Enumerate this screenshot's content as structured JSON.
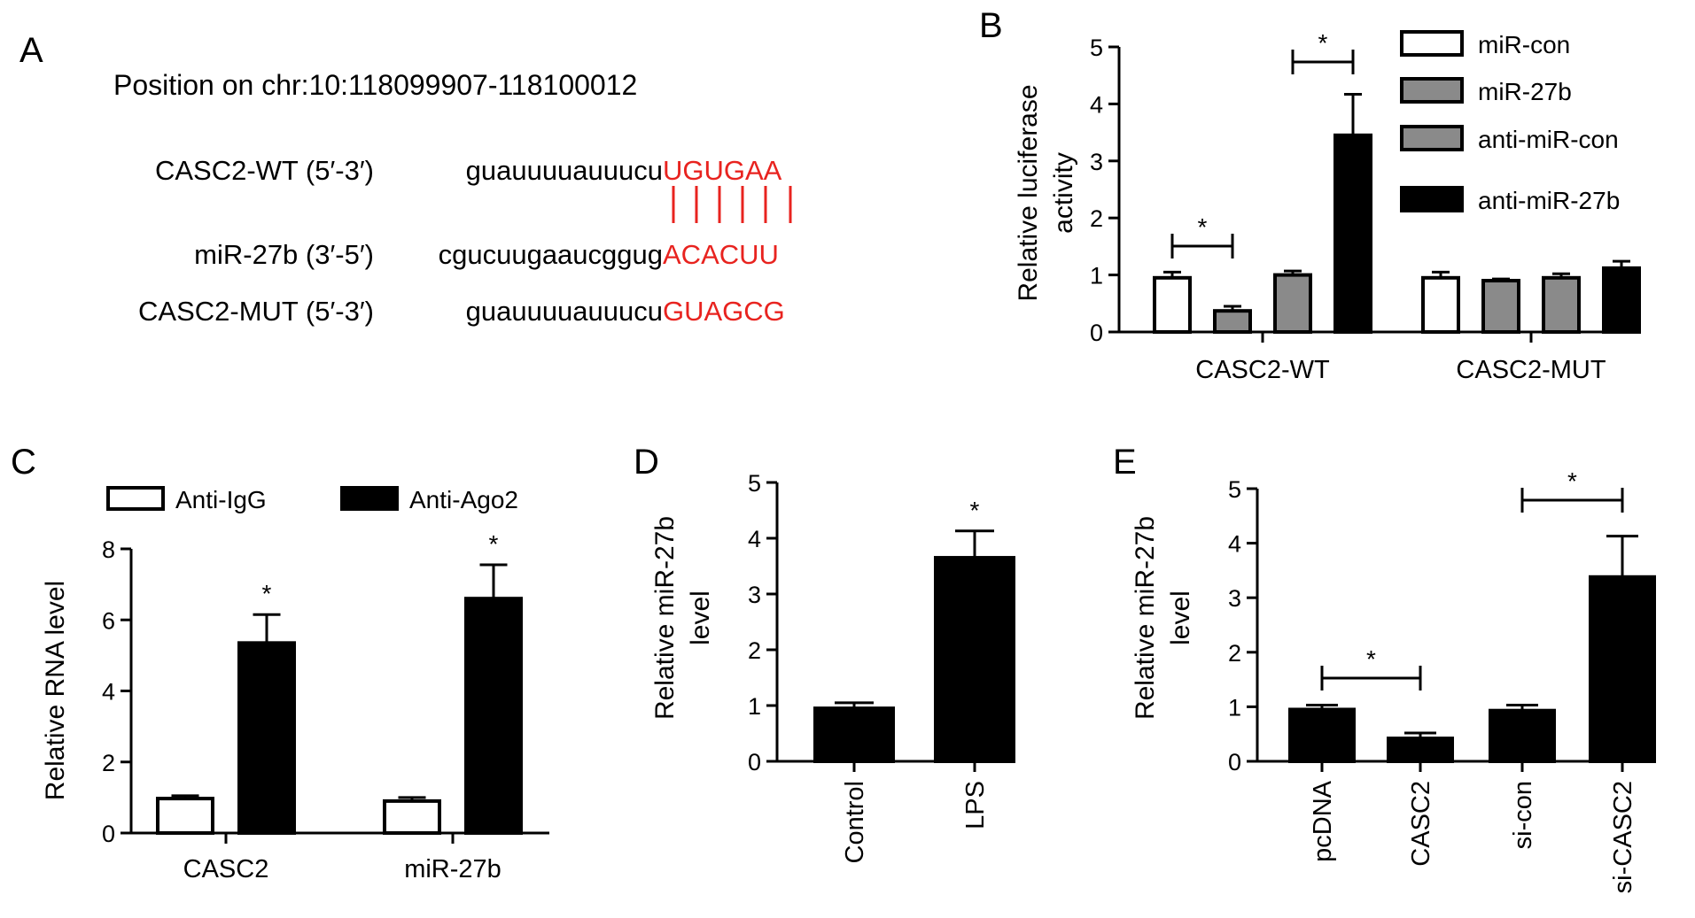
{
  "panel_a": {
    "letter": "A",
    "position": "Position on chr:10:118099907-118100012",
    "rows": [
      {
        "label": "CASC2-WT (5′-3′)",
        "seq_black": "guauuuuauuucu",
        "seq_red": "UGUGAA"
      },
      {
        "label": "miR-27b (3′-5′)",
        "seq_black": "cgucuugaaucggug",
        "seq_red": "ACACUU"
      },
      {
        "label": "CASC2-MUT (5′-3′)",
        "seq_black": "guauuuuauuucu",
        "seq_red": "GUAGCG"
      }
    ],
    "pairing_color": "#e8231f"
  },
  "chart_data": [
    {
      "panel": "B",
      "type": "bar",
      "ylabel": "Relative luciferase activity",
      "ylabel_lines": [
        "Relative luciferase",
        "activity"
      ],
      "ylim": [
        0,
        5
      ],
      "yticks": [
        "0",
        "1",
        "2",
        "3",
        "4",
        "5"
      ],
      "categories": [
        "CASC2-WT",
        "CASC2-MUT"
      ],
      "series": [
        {
          "name": "miR-con",
          "values": [
            0.95,
            0.95
          ],
          "errors": [
            0.1,
            0.1
          ],
          "fill": "#ffffff"
        },
        {
          "name": "miR-27b",
          "values": [
            0.37,
            0.9
          ],
          "errors": [
            0.08,
            0.03
          ],
          "fill": "#8a8a8a"
        },
        {
          "name": "anti-miR-con",
          "values": [
            1.0,
            0.95
          ],
          "errors": [
            0.07,
            0.07
          ],
          "fill": "#8a8a8a"
        },
        {
          "name": "anti-miR-27b",
          "values": [
            3.45,
            1.12
          ],
          "errors": [
            0.72,
            0.12
          ],
          "fill": "#000000"
        }
      ],
      "significance": [
        {
          "category": "CASC2-WT",
          "from": "miR-con",
          "to": "miR-27b",
          "label": "*"
        },
        {
          "category": "CASC2-WT",
          "from": "anti-miR-con",
          "to": "anti-miR-27b",
          "label": "*"
        }
      ],
      "legend_position": "top-right"
    },
    {
      "panel": "C",
      "type": "bar",
      "ylabel": "Relative RNA level",
      "ylim": [
        0,
        8
      ],
      "yticks": [
        "0",
        "2",
        "4",
        "6",
        "8"
      ],
      "categories": [
        "CASC2",
        "miR-27b"
      ],
      "series": [
        {
          "name": "Anti-IgG",
          "values": [
            0.97,
            0.9
          ],
          "errors": [
            0.08,
            0.1
          ],
          "fill": "#ffffff"
        },
        {
          "name": "Anti-Ago2",
          "values": [
            5.35,
            6.6
          ],
          "errors": [
            0.8,
            0.95
          ],
          "fill": "#000000"
        }
      ],
      "significance_stars": [
        "*",
        "*"
      ],
      "legend_position": "top"
    },
    {
      "panel": "D",
      "type": "bar",
      "ylabel": "Relative miR-27b level",
      "ylabel_lines": [
        "Relative miR-27b",
        "level"
      ],
      "ylim": [
        0,
        5
      ],
      "yticks": [
        "0",
        "1",
        "2",
        "3",
        "4",
        "5"
      ],
      "categories": [
        "Control",
        "LPS"
      ],
      "values": [
        0.95,
        3.65
      ],
      "errors": [
        0.1,
        0.48
      ],
      "significance_stars": [
        "",
        "*"
      ]
    },
    {
      "panel": "E",
      "type": "bar",
      "ylabel": "Relative miR-27b level",
      "ylabel_lines": [
        "Relative miR-27b",
        "level"
      ],
      "ylim": [
        0,
        5
      ],
      "yticks": [
        "0",
        "1",
        "2",
        "3",
        "4",
        "5"
      ],
      "categories": [
        "pcDNA",
        "CASC2",
        "si-con",
        "si-CASC2"
      ],
      "values": [
        0.95,
        0.42,
        0.93,
        3.38
      ],
      "errors": [
        0.08,
        0.1,
        0.1,
        0.75
      ],
      "significance": [
        {
          "from": "pcDNA",
          "to": "CASC2",
          "label": "*"
        },
        {
          "from": "si-con",
          "to": "si-CASC2",
          "label": "*"
        }
      ]
    }
  ],
  "panel_letters": {
    "b": "B",
    "c": "C",
    "d": "D",
    "e": "E"
  }
}
